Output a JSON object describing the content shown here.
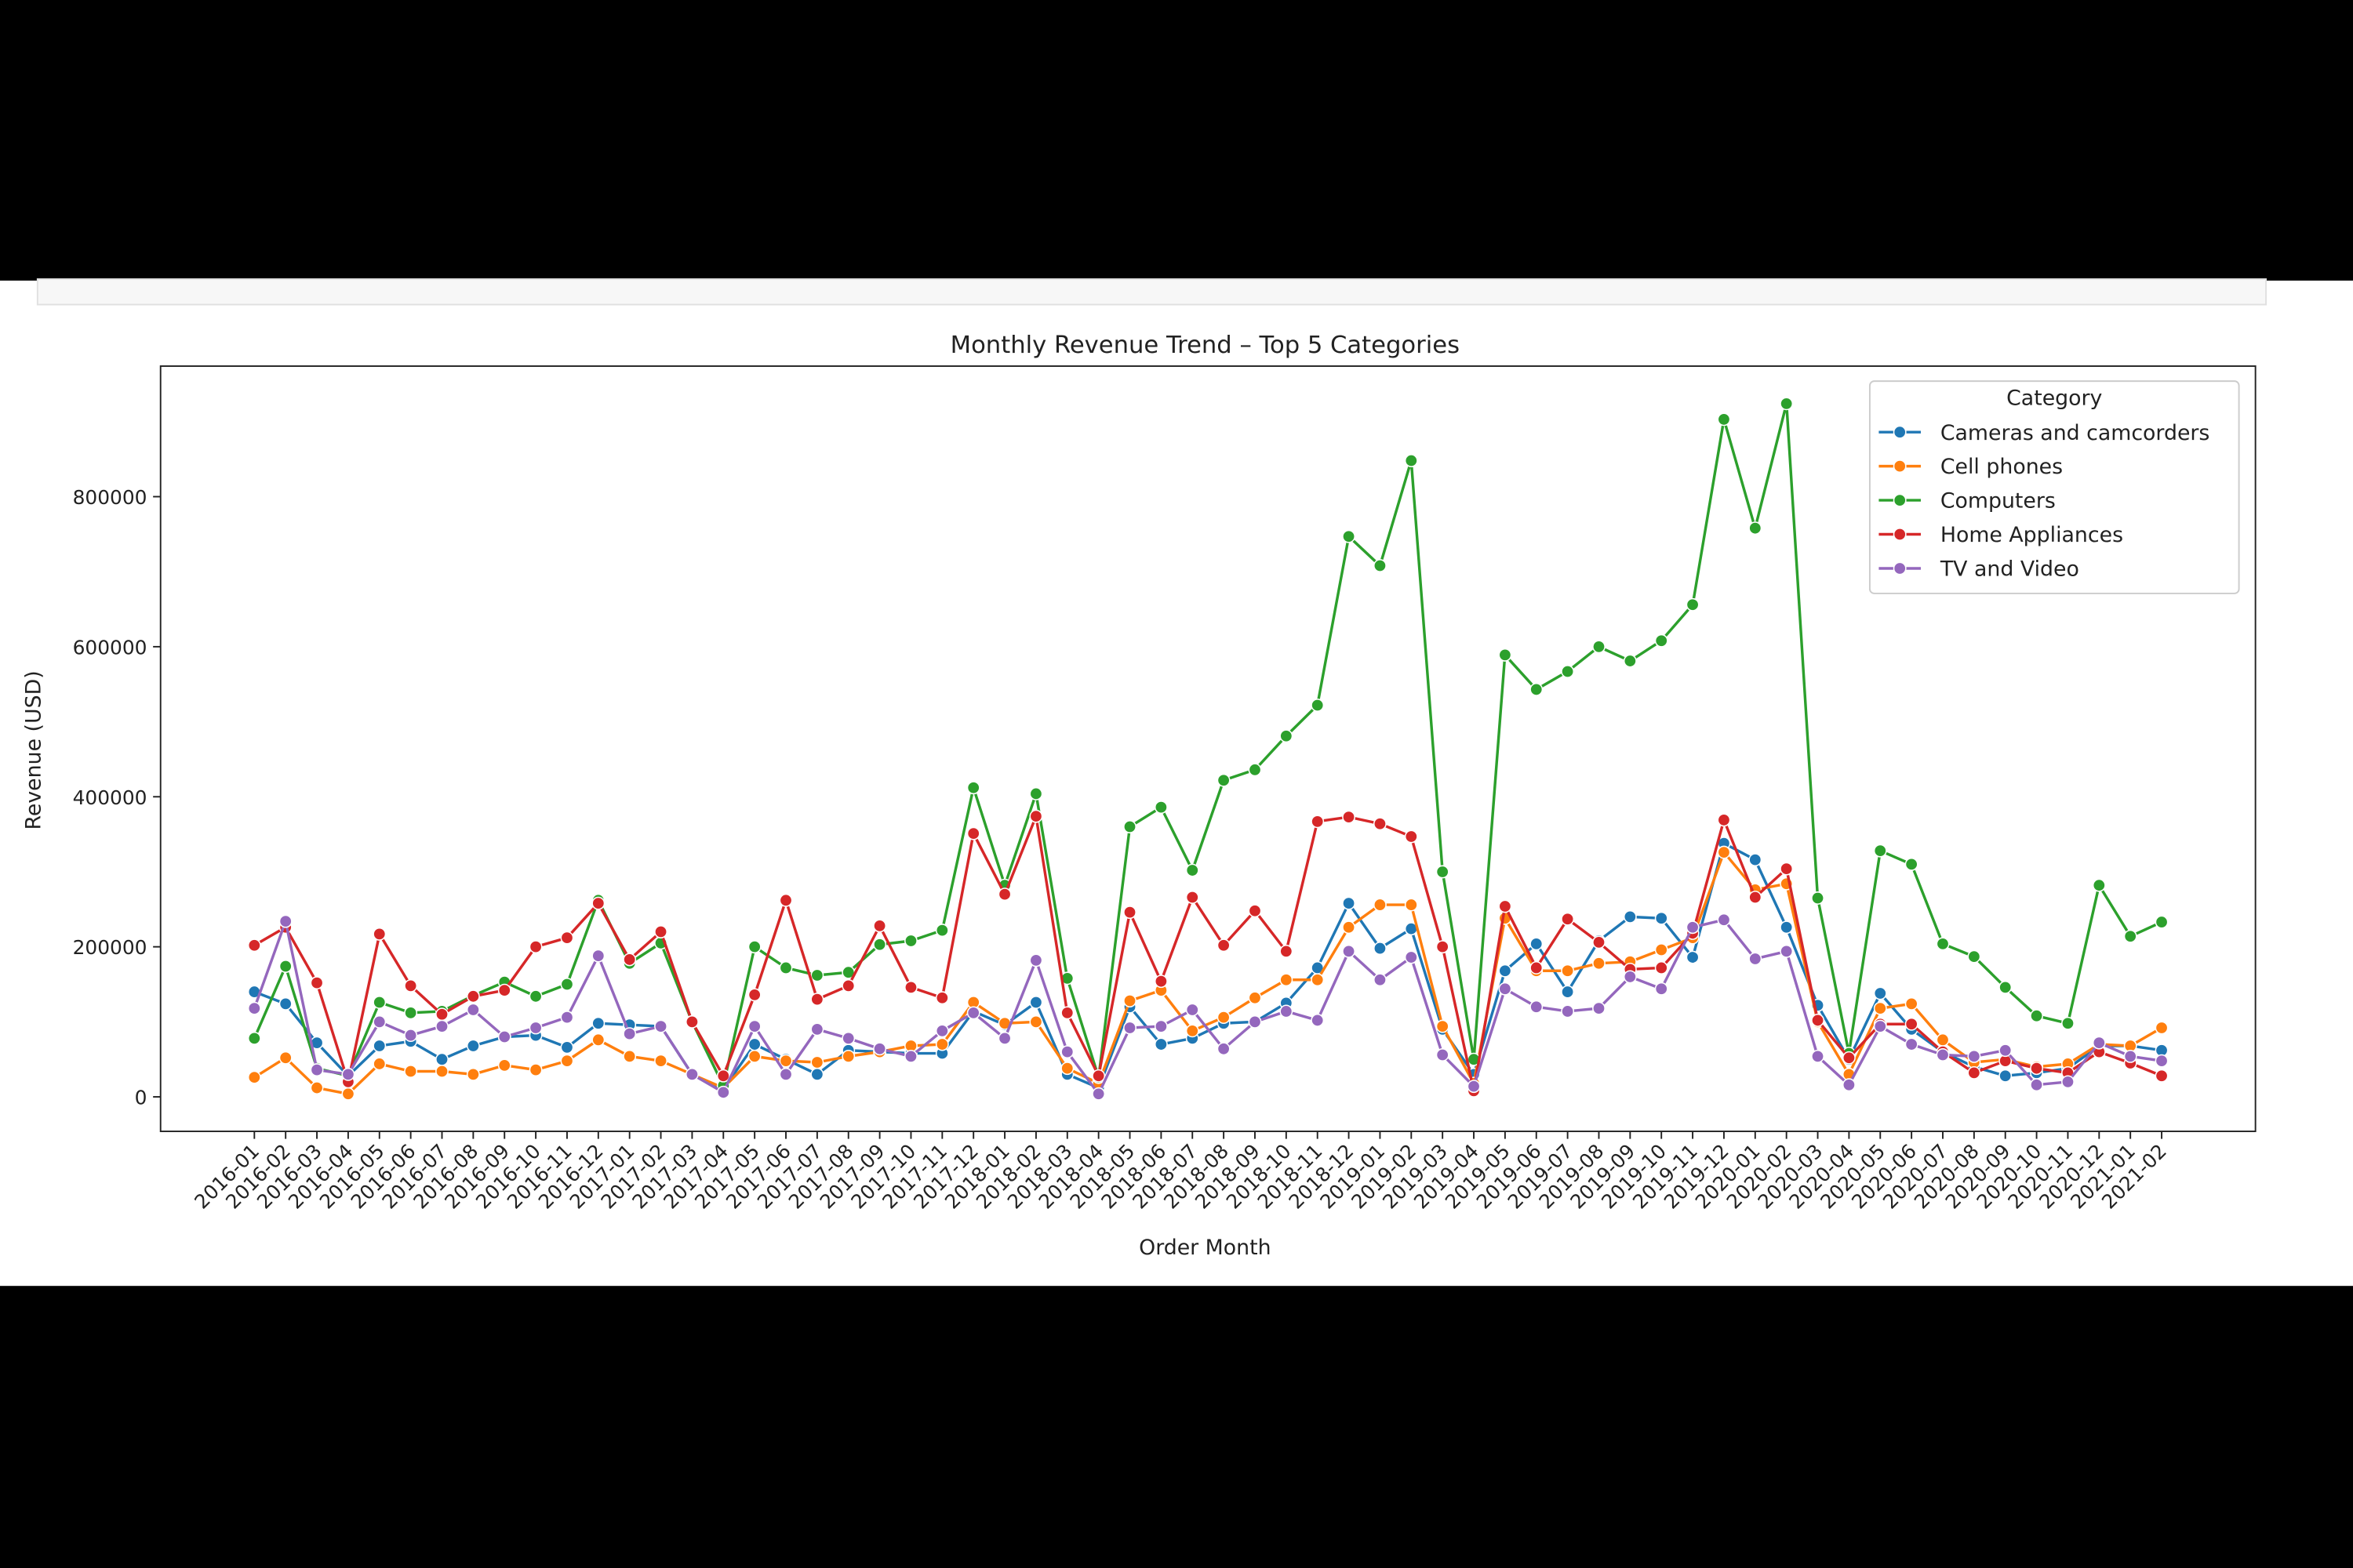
{
  "chart_data": {
    "type": "line",
    "title": "Monthly Revenue Trend – Top 5 Categories",
    "x_label": "Order Month",
    "y_label": "Revenue (USD)",
    "legend_title": "Category",
    "legend_position": "upper right",
    "categories": [
      "2016-01",
      "2016-02",
      "2016-03",
      "2016-04",
      "2016-05",
      "2016-06",
      "2016-07",
      "2016-08",
      "2016-09",
      "2016-10",
      "2016-11",
      "2016-12",
      "2017-01",
      "2017-02",
      "2017-03",
      "2017-04",
      "2017-05",
      "2017-06",
      "2017-07",
      "2017-08",
      "2017-09",
      "2017-10",
      "2017-11",
      "2017-12",
      "2018-01",
      "2018-02",
      "2018-03",
      "2018-04",
      "2018-05",
      "2018-06",
      "2018-07",
      "2018-08",
      "2018-09",
      "2018-10",
      "2018-11",
      "2018-12",
      "2019-01",
      "2019-02",
      "2019-03",
      "2019-04",
      "2019-05",
      "2019-06",
      "2019-07",
      "2019-08",
      "2019-09",
      "2019-10",
      "2019-11",
      "2019-12",
      "2020-01",
      "2020-02",
      "2020-03",
      "2020-04",
      "2020-05",
      "2020-06",
      "2020-07",
      "2020-08",
      "2020-09",
      "2020-10",
      "2020-11",
      "2020-12",
      "2021-01",
      "2021-02"
    ],
    "ylim": [
      -46000,
      974000
    ],
    "yticks": [
      0,
      200000,
      400000,
      600000,
      800000
    ],
    "series": [
      {
        "name": "Cameras and camcorders",
        "color": "#1f77b4",
        "values": [
          140000,
          124000,
          72000,
          28000,
          68000,
          74000,
          50000,
          68000,
          80000,
          82000,
          66000,
          98000,
          96000,
          94000,
          30000,
          10000,
          70000,
          50000,
          30000,
          62000,
          60000,
          58000,
          58000,
          114000,
          96000,
          126000,
          30000,
          12000,
          120000,
          70000,
          78000,
          98000,
          100000,
          125000,
          172000,
          258000,
          198000,
          224000,
          90000,
          30000,
          168000,
          204000,
          140000,
          208000,
          240000,
          238000,
          186000,
          338000,
          316000,
          226000,
          122000,
          50000,
          138000,
          90000,
          60000,
          40000,
          28000,
          32000,
          38000,
          68000,
          68000,
          62000
        ]
      },
      {
        "name": "Cell phones",
        "color": "#ff7f0e",
        "values": [
          26000,
          52000,
          12000,
          4000,
          44000,
          34000,
          34000,
          30000,
          42000,
          36000,
          48000,
          76000,
          54000,
          48000,
          30000,
          12000,
          54000,
          48000,
          46000,
          54000,
          60000,
          68000,
          70000,
          126000,
          98000,
          100000,
          38000,
          18000,
          128000,
          142000,
          88000,
          106000,
          132000,
          156000,
          156000,
          226000,
          256000,
          256000,
          94000,
          18000,
          238000,
          168000,
          168000,
          178000,
          180000,
          196000,
          212000,
          326000,
          276000,
          284000,
          100000,
          30000,
          118000,
          124000,
          76000,
          46000,
          50000,
          40000,
          44000,
          70000,
          68000,
          92000
        ]
      },
      {
        "name": "Computers",
        "color": "#2ca02c",
        "values": [
          78000,
          174000,
          38000,
          28000,
          126000,
          112000,
          114000,
          135000,
          153000,
          134000,
          150000,
          262000,
          178000,
          205000,
          100000,
          15000,
          200000,
          172000,
          162000,
          166000,
          203000,
          208000,
          222000,
          412000,
          282000,
          404000,
          158000,
          26000,
          360000,
          386000,
          302000,
          422000,
          436000,
          481000,
          522000,
          747000,
          708000,
          848000,
          300000,
          50000,
          589000,
          543000,
          567000,
          600000,
          581000,
          608000,
          656000,
          903000,
          758000,
          924000,
          265000,
          58000,
          328000,
          310000,
          204000,
          187000,
          146000,
          108000,
          98000,
          282000,
          214000,
          233000
        ]
      },
      {
        "name": "Home Appliances",
        "color": "#d62728",
        "values": [
          202000,
          226000,
          152000,
          20000,
          217000,
          148000,
          110000,
          134000,
          142000,
          200000,
          212000,
          258000,
          183000,
          220000,
          100000,
          28000,
          136000,
          262000,
          130000,
          148000,
          228000,
          146000,
          132000,
          351000,
          270000,
          374000,
          112000,
          28000,
          246000,
          154000,
          266000,
          202000,
          248000,
          194000,
          367000,
          373000,
          364000,
          347000,
          200000,
          8000,
          254000,
          172000,
          237000,
          206000,
          170000,
          172000,
          218000,
          369000,
          266000,
          304000,
          102000,
          52000,
          97000,
          97000,
          60000,
          32000,
          48000,
          38000,
          32000,
          60000,
          45000,
          28000
        ]
      },
      {
        "name": "TV and Video",
        "color": "#9467bd",
        "values": [
          118000,
          234000,
          36000,
          30000,
          100000,
          82000,
          94000,
          116000,
          80000,
          92000,
          106000,
          188000,
          84000,
          94000,
          30000,
          6000,
          94000,
          30000,
          90000,
          78000,
          64000,
          54000,
          88000,
          112000,
          78000,
          182000,
          60000,
          4000,
          92000,
          94000,
          116000,
          64000,
          100000,
          114000,
          102000,
          194000,
          156000,
          186000,
          56000,
          14000,
          144000,
          120000,
          114000,
          118000,
          160000,
          144000,
          226000,
          236000,
          184000,
          194000,
          54000,
          16000,
          94000,
          70000,
          56000,
          54000,
          62000,
          16000,
          20000,
          72000,
          54000,
          48000
        ]
      }
    ]
  }
}
